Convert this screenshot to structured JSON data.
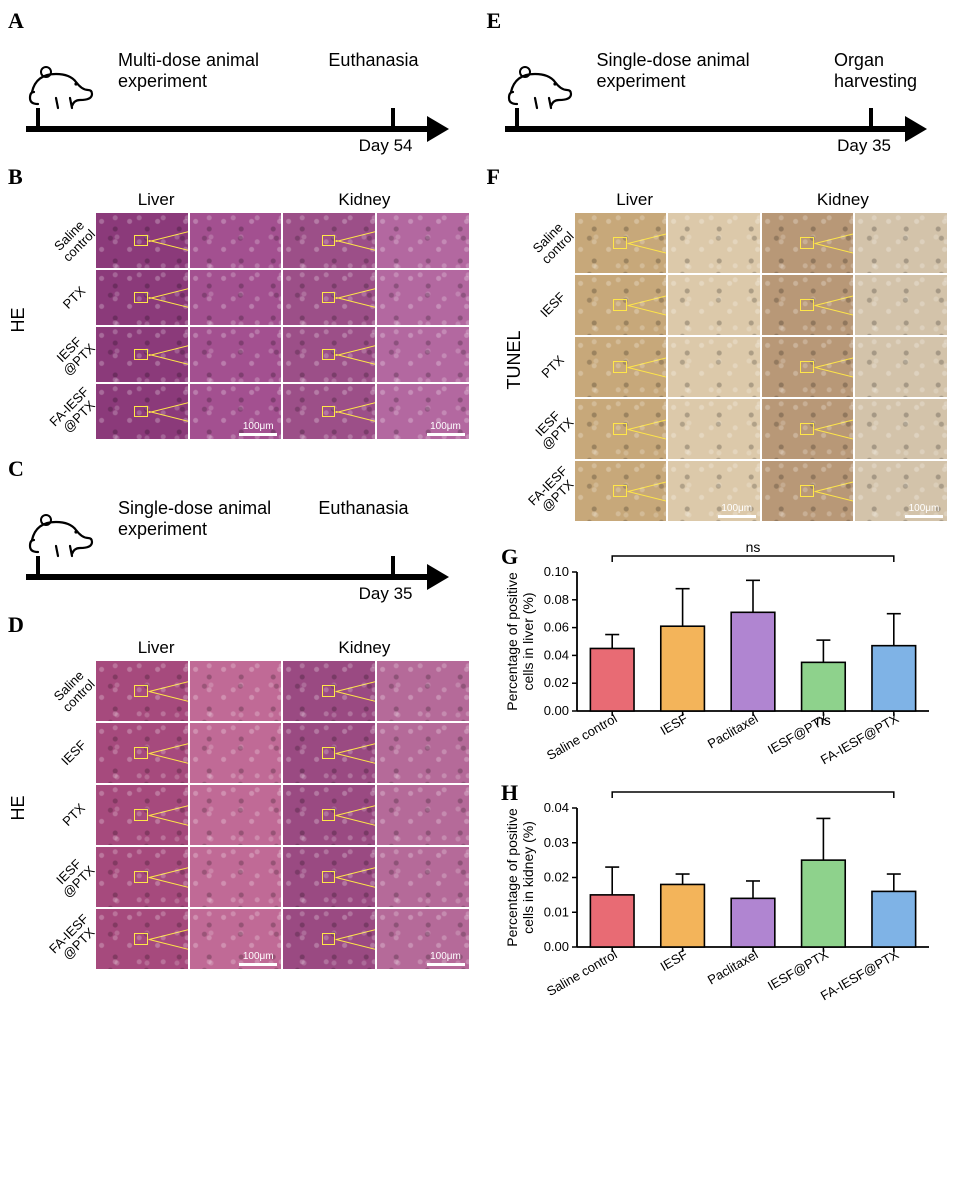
{
  "panels": {
    "A": {
      "label": "A",
      "experiment_label": "Multi-dose animal\nexperiment",
      "end_event": "Euthanasia",
      "end_day_label": "Day 54"
    },
    "C": {
      "label": "C",
      "experiment_label": "Single-dose animal\nexperiment",
      "end_event": "Euthanasia",
      "end_day_label": "Day 35"
    },
    "E": {
      "label": "E",
      "experiment_label": "Single-dose animal\nexperiment",
      "end_event": "Organ\nharvesting",
      "end_day_label": "Day 35"
    },
    "B": {
      "label": "B",
      "stain": "HE",
      "organs": [
        "Liver",
        "Kidney"
      ],
      "rows": [
        "Saline\ncontrol",
        "PTX",
        "IESF\n@PTX",
        "FA-IESF\n@PTX"
      ],
      "scale_label": "100μm",
      "tile_colors": {
        "liver": "#8b3a7a",
        "liver_zoom": "#a35090",
        "kidney": "#9c4f88",
        "kidney_zoom": "#b368a0"
      }
    },
    "D": {
      "label": "D",
      "stain": "HE",
      "organs": [
        "Liver",
        "Kidney"
      ],
      "rows": [
        "Saline\ncontrol",
        "IESF",
        "PTX",
        "IESF\n@PTX",
        "FA-IESF\n@PTX"
      ],
      "scale_label": "100μm",
      "tile_colors": {
        "liver": "#a64a7d",
        "liver_zoom": "#c06a96",
        "kidney": "#9a4a82",
        "kidney_zoom": "#b56a99"
      }
    },
    "F": {
      "label": "F",
      "stain": "TUNEL",
      "organs": [
        "Liver",
        "Kidney"
      ],
      "rows": [
        "Saline\ncontrol",
        "IESF",
        "PTX",
        "IESF\n@PTX",
        "FA-IESF\n@PTX"
      ],
      "scale_label": "100μm",
      "tile_colors": {
        "liver": "#c7a87a",
        "liver_zoom": "#dcc9aa",
        "kidney": "#b89877",
        "kidney_zoom": "#d3c3aa"
      }
    },
    "G": {
      "label": "G",
      "significance": "ns",
      "ylabel": "Percentage of positive\ncells in liver (%)",
      "ylim": [
        0,
        0.1
      ],
      "ytick_step": 0.02,
      "categories": [
        "Saline control",
        "IESF",
        "Paclitaxel",
        "IESF@PTX",
        "FA-IESF@PTX"
      ],
      "values": [
        0.045,
        0.061,
        0.071,
        0.035,
        0.047
      ],
      "errors": [
        0.01,
        0.027,
        0.023,
        0.016,
        0.023
      ],
      "bar_colors": [
        "#e86b74",
        "#f3b45a",
        "#b085d1",
        "#8ed28c",
        "#7fb3e6"
      ],
      "bar_border": "#000000",
      "extra_label_below": "ns"
    },
    "H": {
      "label": "H",
      "significance": "",
      "ylabel": "Percentage of positive\ncells in kidney (%)",
      "ylim": [
        0,
        0.04
      ],
      "ytick_step": 0.01,
      "categories": [
        "Saline control",
        "IESF",
        "Paclitaxel",
        "IESF@PTX",
        "FA-IESF@PTX"
      ],
      "values": [
        0.015,
        0.018,
        0.014,
        0.025,
        0.016
      ],
      "errors": [
        0.008,
        0.003,
        0.005,
        0.012,
        0.005
      ],
      "bar_colors": [
        "#e86b74",
        "#f3b45a",
        "#b085d1",
        "#8ed28c",
        "#7fb3e6"
      ],
      "bar_border": "#000000"
    }
  },
  "style": {
    "background": "#ffffff",
    "error_bar_color": "#000000",
    "error_bar_width": 1.6,
    "axis_color": "#000000",
    "highlight_box_color": "#ffe648"
  }
}
